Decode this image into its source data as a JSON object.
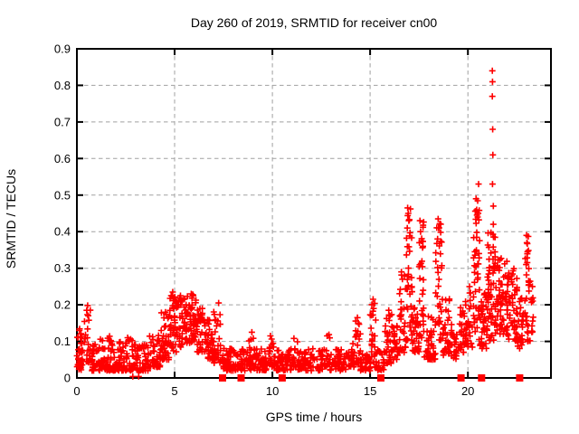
{
  "window": {
    "background_color": "#ffffff"
  },
  "chart_data": {
    "type": "scatter",
    "title": "Day 260 of 2019, SRMTID for receiver cn00",
    "xlabel": "GPS time / hours",
    "ylabel": "SRMTID / TECUs",
    "xlim": [
      0,
      24.25
    ],
    "ylim": [
      0,
      0.9
    ],
    "xticks": [
      0,
      5,
      10,
      15,
      20
    ],
    "yticks": [
      0,
      0.1,
      0.2,
      0.3,
      0.4,
      0.5,
      0.6,
      0.7,
      0.8,
      0.9
    ],
    "ytick_labels": [
      "0",
      "0.1",
      "0.2",
      "0.3",
      "0.4",
      "0.5",
      "0.6",
      "0.7",
      "0.8",
      "0.9"
    ],
    "grid": true,
    "legend": "none",
    "marker": "plus",
    "marker_color": "#ff0000",
    "grid_color": "#a0a0a0",
    "axis_color": "#000000",
    "series": [
      {
        "name": "srmtid-scatter",
        "marker": "plus",
        "clusters": [
          [
            0.0,
            0.3,
            0.03,
            0.14,
            25,
            1.5
          ],
          [
            0.05,
            0.35,
            0.02,
            0.08,
            20,
            1.0
          ],
          [
            0.35,
            0.7,
            0.04,
            0.2,
            22,
            1.5
          ],
          [
            0.7,
            1.2,
            0.02,
            0.12,
            35,
            2.0
          ],
          [
            1.2,
            1.8,
            0.02,
            0.12,
            45,
            2.0
          ],
          [
            1.8,
            2.4,
            0.02,
            0.1,
            45,
            2.0
          ],
          [
            2.4,
            3.1,
            0.02,
            0.13,
            50,
            2.0
          ],
          [
            3.1,
            3.7,
            0.02,
            0.09,
            45,
            2.0
          ],
          [
            3.7,
            4.3,
            0.03,
            0.12,
            45,
            1.8
          ],
          [
            4.3,
            4.75,
            0.05,
            0.18,
            40,
            1.5
          ],
          [
            4.75,
            5.1,
            0.07,
            0.23,
            40,
            1.3
          ],
          [
            5.1,
            5.6,
            0.08,
            0.22,
            45,
            1.2
          ],
          [
            5.6,
            6.1,
            0.09,
            0.23,
            45,
            1.3
          ],
          [
            6.1,
            6.6,
            0.07,
            0.19,
            40,
            1.5
          ],
          [
            6.6,
            7.0,
            0.05,
            0.16,
            35,
            1.5
          ],
          [
            7.0,
            7.35,
            0.04,
            0.2,
            30,
            1.2
          ],
          [
            7.35,
            7.8,
            0.02,
            0.09,
            30,
            1.5
          ],
          [
            7.8,
            8.6,
            0.02,
            0.08,
            50,
            1.5
          ],
          [
            8.6,
            9.1,
            0.02,
            0.12,
            35,
            2.0
          ],
          [
            9.1,
            9.8,
            0.02,
            0.08,
            45,
            1.5
          ],
          [
            9.8,
            10.1,
            0.03,
            0.11,
            20,
            2.0
          ],
          [
            10.1,
            11.0,
            0.02,
            0.08,
            55,
            1.5
          ],
          [
            11.0,
            11.3,
            0.03,
            0.11,
            18,
            2.0
          ],
          [
            11.3,
            12.6,
            0.02,
            0.08,
            75,
            1.5
          ],
          [
            12.6,
            12.95,
            0.03,
            0.12,
            20,
            2.0
          ],
          [
            12.95,
            13.8,
            0.02,
            0.08,
            50,
            1.5
          ],
          [
            13.8,
            14.2,
            0.03,
            0.1,
            28,
            1.5
          ],
          [
            14.25,
            14.5,
            0.04,
            0.165,
            18,
            1.5
          ],
          [
            14.5,
            15.0,
            0.02,
            0.07,
            32,
            1.5
          ],
          [
            15.0,
            15.3,
            0.03,
            0.215,
            25,
            1.3
          ],
          [
            15.3,
            15.75,
            0.02,
            0.08,
            25,
            1.5
          ],
          [
            15.75,
            16.15,
            0.04,
            0.18,
            30,
            1.3
          ],
          [
            16.15,
            16.5,
            0.05,
            0.16,
            25,
            1.5
          ],
          [
            16.5,
            16.85,
            0.07,
            0.29,
            28,
            1.3
          ],
          [
            16.85,
            17.15,
            0.1,
            0.465,
            40,
            1.0
          ],
          [
            17.15,
            17.5,
            0.07,
            0.2,
            28,
            1.5
          ],
          [
            17.5,
            17.75,
            0.1,
            0.43,
            30,
            1.1
          ],
          [
            17.75,
            18.35,
            0.05,
            0.17,
            45,
            1.5
          ],
          [
            18.35,
            18.7,
            0.1,
            0.43,
            35,
            1.3
          ],
          [
            18.7,
            19.2,
            0.06,
            0.24,
            40,
            1.8
          ],
          [
            19.2,
            19.45,
            0.05,
            0.13,
            18,
            1.5
          ],
          [
            19.5,
            19.85,
            0.07,
            0.2,
            25,
            1.5
          ],
          [
            19.85,
            20.25,
            0.08,
            0.26,
            30,
            1.5
          ],
          [
            20.25,
            20.6,
            0.1,
            0.49,
            45,
            1.0
          ],
          [
            20.6,
            21.0,
            0.08,
            0.24,
            35,
            1.5
          ],
          [
            21.0,
            21.4,
            0.1,
            0.4,
            55,
            1.3
          ],
          [
            21.4,
            22.0,
            0.12,
            0.33,
            60,
            1.2
          ],
          [
            22.0,
            22.55,
            0.1,
            0.3,
            55,
            1.3
          ],
          [
            22.55,
            22.85,
            0.08,
            0.22,
            25,
            1.5
          ],
          [
            22.9,
            23.2,
            0.1,
            0.39,
            30,
            1.2
          ],
          [
            23.2,
            23.35,
            0.12,
            0.25,
            10,
            1.5
          ]
        ],
        "extra_points": [
          [
            0.5,
            0.185
          ],
          [
            0.55,
            0.198
          ],
          [
            0.58,
            0.17
          ],
          [
            2.86,
            0.004
          ],
          [
            3.16,
            0.004
          ],
          [
            4.9,
            0.235
          ],
          [
            5.3,
            0.225
          ],
          [
            5.85,
            0.23
          ],
          [
            7.25,
            0.205
          ],
          [
            8.95,
            0.125
          ],
          [
            9.9,
            0.115
          ],
          [
            11.1,
            0.108
          ],
          [
            12.8,
            0.115
          ],
          [
            14.35,
            0.165
          ],
          [
            14.4,
            0.15
          ],
          [
            15.15,
            0.215
          ],
          [
            15.18,
            0.19
          ],
          [
            15.95,
            0.185
          ],
          [
            16.6,
            0.29
          ],
          [
            16.65,
            0.27
          ],
          [
            16.92,
            0.465
          ],
          [
            16.95,
            0.45
          ],
          [
            16.98,
            0.43
          ],
          [
            16.9,
            0.41
          ],
          [
            17.55,
            0.43
          ],
          [
            17.58,
            0.4
          ],
          [
            17.52,
            0.37
          ],
          [
            18.48,
            0.435
          ],
          [
            18.5,
            0.41
          ],
          [
            18.45,
            0.38
          ],
          [
            20.42,
            0.49
          ],
          [
            20.45,
            0.46
          ],
          [
            20.5,
            0.44
          ],
          [
            20.55,
            0.53
          ],
          [
            21.25,
            0.84
          ],
          [
            21.26,
            0.81
          ],
          [
            21.25,
            0.77
          ],
          [
            21.27,
            0.68
          ],
          [
            21.28,
            0.61
          ],
          [
            21.26,
            0.53
          ],
          [
            21.3,
            0.47
          ],
          [
            21.3,
            0.42
          ],
          [
            23.0,
            0.39
          ],
          [
            23.02,
            0.37
          ],
          [
            23.05,
            0.345
          ],
          [
            22.98,
            0.31
          ],
          [
            23.3,
            0.25
          ]
        ]
      },
      {
        "name": "axis-squares",
        "marker": "filled-square",
        "y": 0,
        "x": [
          7.45,
          8.4,
          10.5,
          15.55,
          19.65,
          20.7,
          22.65
        ]
      }
    ]
  }
}
